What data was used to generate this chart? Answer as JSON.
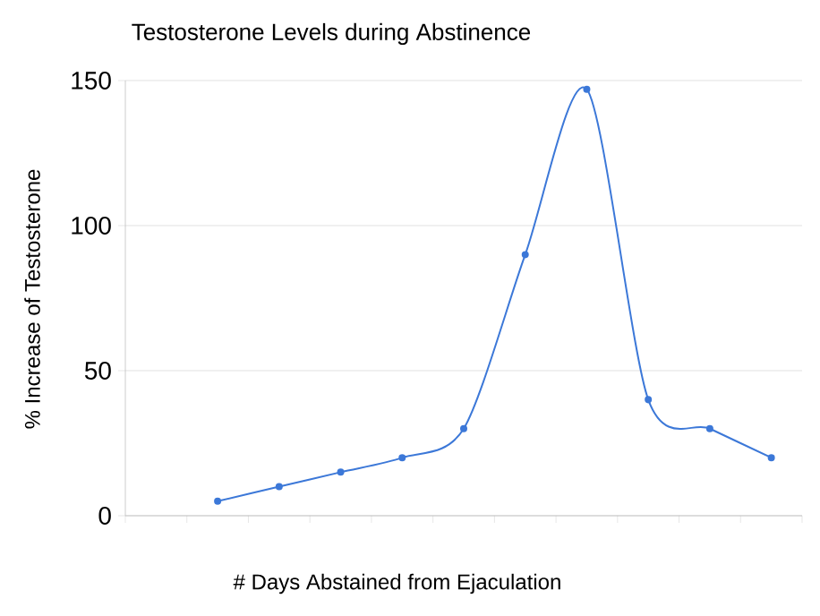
{
  "chart_data": {
    "type": "line",
    "title": "Testosterone Levels during Abstinence",
    "xlabel": "# Days Abstained from Ejaculation",
    "ylabel": "% Increase of Testosterone",
    "categories": [
      null,
      null,
      null,
      null,
      null,
      null,
      null,
      null,
      null,
      null,
      null
    ],
    "series": [
      {
        "color": "#3c78d8",
        "values": [
          null,
          5,
          10,
          15,
          20,
          30,
          90,
          147,
          40,
          30,
          20
        ]
      }
    ],
    "ylim": [
      0,
      150
    ],
    "yticks": [
      0,
      50,
      100,
      150
    ],
    "grid": "y",
    "marker": "circle",
    "line_style": "solid",
    "tick_labels": "y"
  }
}
